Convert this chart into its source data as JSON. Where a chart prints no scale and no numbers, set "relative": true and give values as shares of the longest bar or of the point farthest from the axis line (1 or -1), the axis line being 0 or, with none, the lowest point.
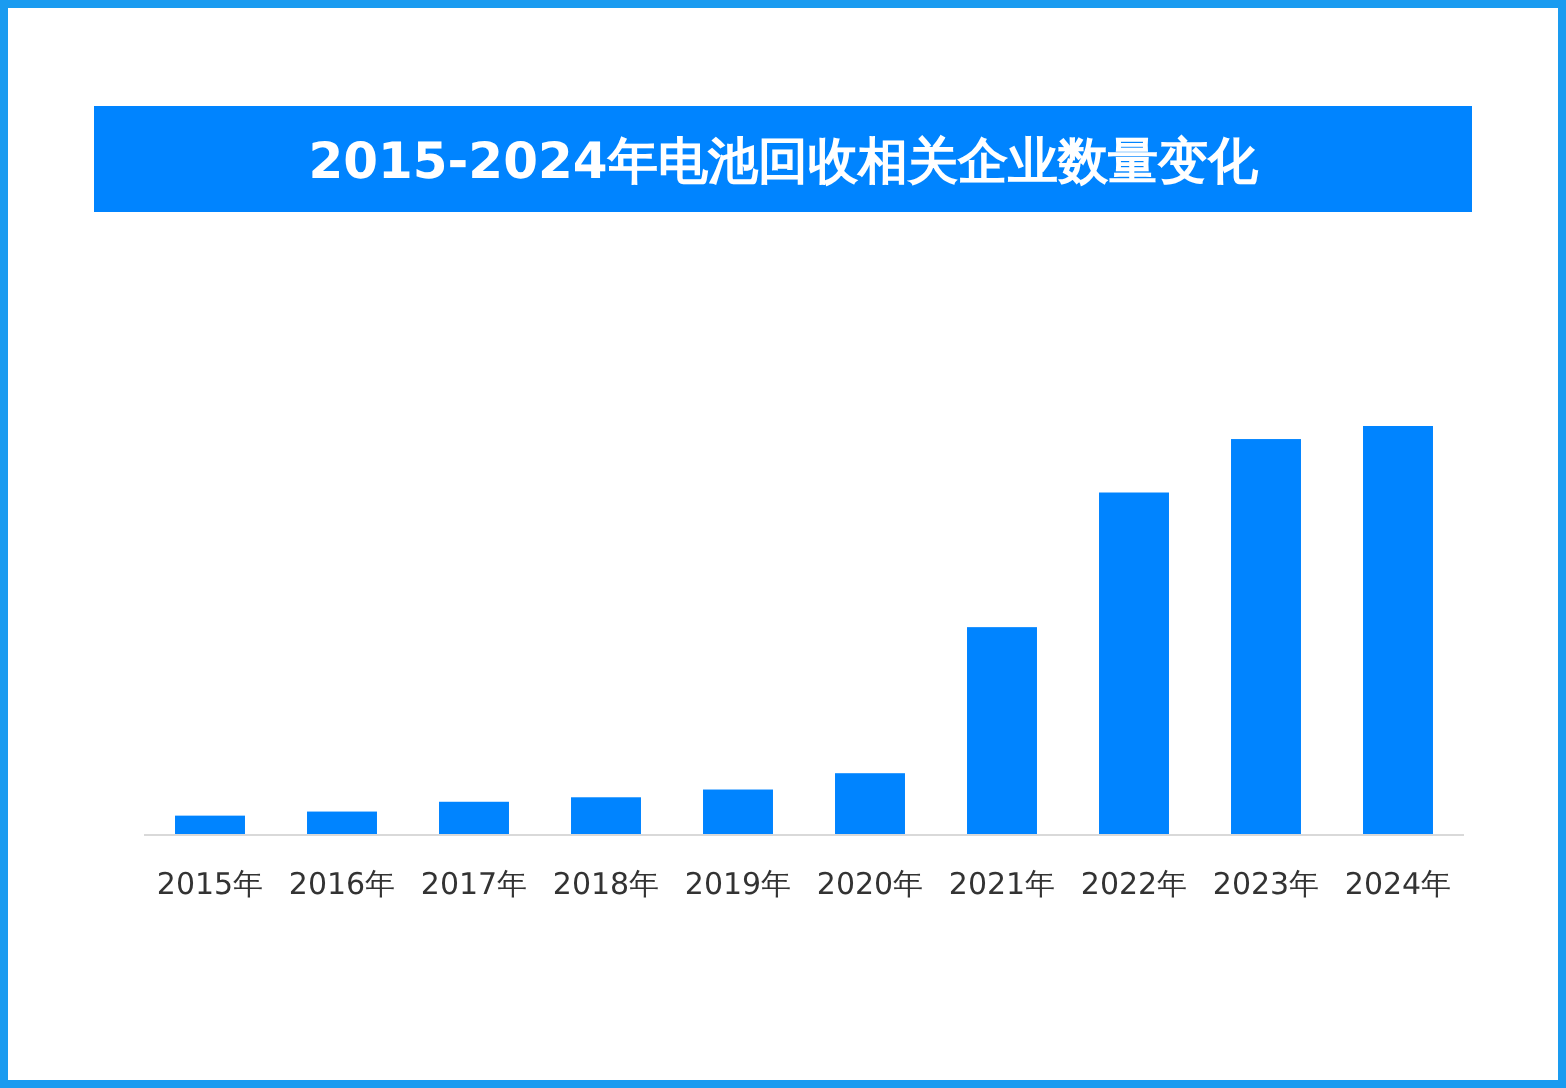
{
  "chart_data": {
    "type": "bar",
    "title": "2015-2024年电池回收相关企业数量变化",
    "categories": [
      "2015年",
      "2016年",
      "2017年",
      "2018年",
      "2019年",
      "2020年",
      "2021年",
      "2022年",
      "2023年",
      "2024年"
    ],
    "values": [
      0.045,
      0.055,
      0.079,
      0.09,
      0.109,
      0.149,
      0.507,
      0.837,
      0.968,
      1
    ],
    "color": "#0084ff",
    "relative": true
  }
}
